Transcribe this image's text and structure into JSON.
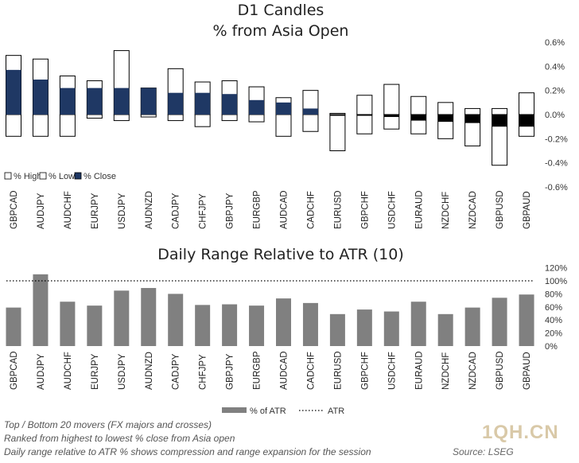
{
  "titles": {
    "candles_line1": "D1 Candles",
    "candles_line2": "% from Asia Open",
    "range": "Daily Range Relative to ATR (10)"
  },
  "footnotes": {
    "line1": "Top / Bottom 20 movers (FX majors and crosses)",
    "line2": "Ranked from highest to lowest % close from Asia open",
    "line3": "Daily range relative to ATR % shows compression and range expansion for the session",
    "source": "Source: LSEG",
    "watermark": "1QH.CN"
  },
  "colors": {
    "close": "#1f3864",
    "bar": "#808080",
    "box": "#000000"
  },
  "chart_data": [
    {
      "type": "bar",
      "chart": "D1 Candles",
      "title": "D1 Candles",
      "subtitle": "% from Asia Open",
      "categories": [
        "GBPCAD",
        "AUDJPY",
        "AUDCHF",
        "EURJPY",
        "USDJPY",
        "AUDNZD",
        "CADJPY",
        "CHFJPY",
        "GBPJPY",
        "EURGBP",
        "AUDCAD",
        "CADCHF",
        "EURUSD",
        "GBPCHF",
        "USDCHF",
        "EURAUD",
        "NZDCHF",
        "NZDCAD",
        "GBPUSD",
        "GBPAUD"
      ],
      "series": [
        {
          "name": "% High",
          "values": [
            0.49,
            0.46,
            0.32,
            0.28,
            0.53,
            0.22,
            0.38,
            0.27,
            0.28,
            0.23,
            0.14,
            0.2,
            0.01,
            0.16,
            0.25,
            0.15,
            0.1,
            0.05,
            0.05,
            0.18
          ]
        },
        {
          "name": "% Low",
          "values": [
            -0.18,
            -0.18,
            -0.18,
            -0.03,
            -0.05,
            -0.02,
            -0.05,
            -0.1,
            -0.05,
            -0.06,
            -0.18,
            -0.14,
            -0.3,
            -0.16,
            -0.12,
            -0.16,
            -0.2,
            -0.26,
            -0.42,
            -0.18
          ]
        },
        {
          "name": "% Close",
          "values": [
            0.37,
            0.29,
            0.22,
            0.22,
            0.22,
            0.22,
            0.18,
            0.18,
            0.17,
            0.12,
            0.1,
            0.05,
            -0.01,
            -0.01,
            -0.02,
            -0.05,
            -0.06,
            -0.07,
            -0.1,
            -0.1
          ]
        }
      ],
      "y_ticks": [
        "0.6%",
        "0.4%",
        "0.2%",
        "0.0%",
        "-0.2%",
        "-0.4%",
        "-0.6%"
      ],
      "ylim": [
        -0.6,
        0.6
      ],
      "legend": [
        "% High",
        "% Low",
        "% Close"
      ],
      "legend_position": "bottom-left",
      "grid": false
    },
    {
      "type": "bar",
      "chart": "Daily Range Relative to ATR (10)",
      "title": "Daily Range Relative to ATR (10)",
      "categories": [
        "GBPCAD",
        "AUDJPY",
        "AUDCHF",
        "EURJPY",
        "USDJPY",
        "AUDNZD",
        "CADJPY",
        "CHFJPY",
        "GBPJPY",
        "EURGBP",
        "AUDCAD",
        "CADCHF",
        "EURUSD",
        "GBPCHF",
        "USDCHF",
        "EURAUD",
        "NZDCHF",
        "NZDCAD",
        "GBPUSD",
        "GBPAUD"
      ],
      "series": [
        {
          "name": "% of ATR",
          "values": [
            59,
            110,
            68,
            62,
            85,
            89,
            80,
            63,
            64,
            62,
            73,
            66,
            49,
            56,
            53,
            68,
            49,
            59,
            74,
            79
          ]
        }
      ],
      "reference_line": {
        "name": "ATR",
        "value": 100
      },
      "y_ticks": [
        "120%",
        "100%",
        "80%",
        "60%",
        "40%",
        "20%",
        "0%"
      ],
      "ylim": [
        0,
        120
      ],
      "legend": [
        "% of ATR",
        "ATR"
      ],
      "legend_position": "bottom-center",
      "grid": false
    }
  ]
}
